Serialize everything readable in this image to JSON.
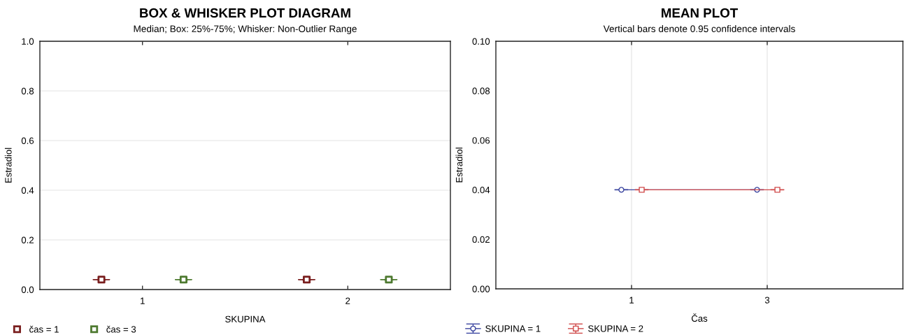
{
  "chart_data": [
    {
      "type": "box",
      "title": "BOX & WHISKER PLOT DIAGRAM",
      "subtitle": "Median; Box: 25%-75%; Whisker: Non-Outlier Range",
      "xlabel": "SKUPINA",
      "ylabel": "Estradiol",
      "categories": [
        "1",
        "2"
      ],
      "series": [
        {
          "name": "čas = 1",
          "color": "#7a1f1f",
          "boxes": [
            {
              "low": 0.04,
              "q1": 0.04,
              "median": 0.04,
              "q3": 0.04,
              "high": 0.04
            },
            {
              "low": 0.04,
              "q1": 0.04,
              "median": 0.04,
              "q3": 0.04,
              "high": 0.04
            }
          ]
        },
        {
          "name": "čas = 3",
          "color": "#4e7a30",
          "boxes": [
            {
              "low": 0.04,
              "q1": 0.04,
              "median": 0.04,
              "q3": 0.04,
              "high": 0.04
            },
            {
              "low": 0.04,
              "q1": 0.04,
              "median": 0.04,
              "q3": 0.04,
              "high": 0.04
            }
          ]
        },
        {
          "type": "scatter",
          "color": "#7a1f1f",
          "x": [
            "1",
            "2"
          ],
          "values": [
            0.04,
            0.04
          ]
        },
        {
          "type": "scatter",
          "color": "#4e7a30",
          "x": [
            "1",
            "2"
          ],
          "values": [
            0.04,
            0.04
          ]
        }
      ],
      "ylim": [
        0,
        1
      ],
      "yticks": [
        {
          "value": 0,
          "label": "0.0"
        },
        0.2,
        0.4,
        0.6,
        0.8,
        {
          "value": 1,
          "label": "1.0"
        }
      ],
      "grid": "y",
      "legend": "bottom left",
      "marker": "square"
    },
    {
      "type": "line",
      "title": "MEAN PLOT",
      "subtitle": "Vertical bars denote 0.95 confidence intervals",
      "xlabel": "Čas",
      "ylabel": "Estradiol",
      "categories": [
        "1",
        "3"
      ],
      "series": [
        {
          "name": "SKUPINA = 1",
          "color": "#3c46a0",
          "marker": "circle",
          "values": [
            0.04,
            0.04
          ],
          "errors": [
            0,
            0
          ]
        },
        {
          "name": "SKUPINA = 2",
          "color": "#d04a4a",
          "marker": "square",
          "values": [
            0.04,
            0.04
          ],
          "errors": [
            0,
            0
          ]
        }
      ],
      "ylim": [
        0,
        0.1
      ],
      "yticks": [
        {
          "value": 0,
          "label": "0.00"
        },
        0.02,
        0.04,
        0.06,
        0.08,
        {
          "value": 0.1,
          "label": "0.10"
        }
      ],
      "grid": "x",
      "legend": "bottom left",
      "line_style": "solid"
    }
  ]
}
